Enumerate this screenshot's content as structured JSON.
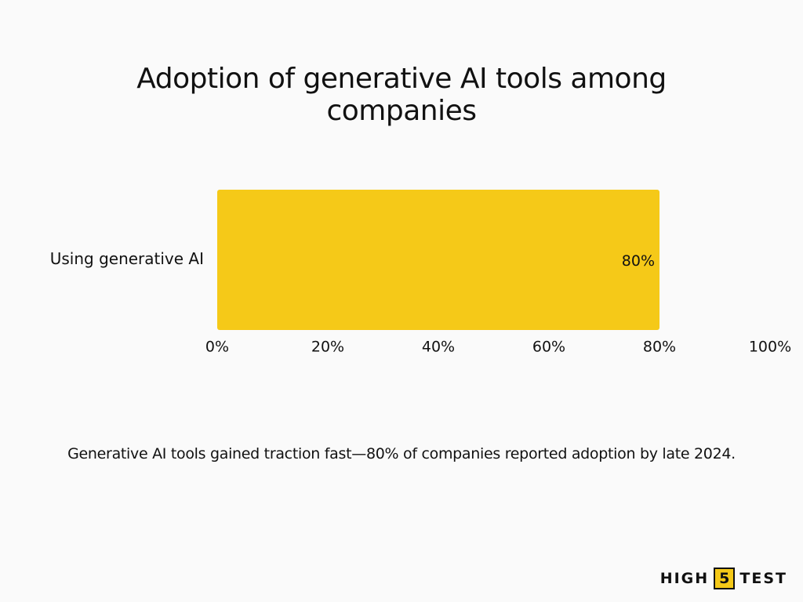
{
  "chart_data": {
    "type": "hbar",
    "title": "Adoption of generative AI tools among companies",
    "categories": [
      "Using generative AI"
    ],
    "values": [
      80
    ],
    "value_labels": [
      "80%"
    ],
    "color": "#f5c918",
    "xlim": [
      0,
      100
    ],
    "xticks": [
      {
        "value": 0,
        "label": "0%"
      },
      {
        "value": 20,
        "label": "20%"
      },
      {
        "value": 40,
        "label": "40%"
      },
      {
        "value": 60,
        "label": "60%"
      },
      {
        "value": 80,
        "label": "80%"
      },
      {
        "value": 100,
        "label": "100%"
      }
    ],
    "grid": false
  },
  "caption": "Generative AI tools gained traction fast—80% of companies reported adoption by late 2024.",
  "logo": {
    "left": "HIGH",
    "badge": "5",
    "right": "TEST"
  }
}
